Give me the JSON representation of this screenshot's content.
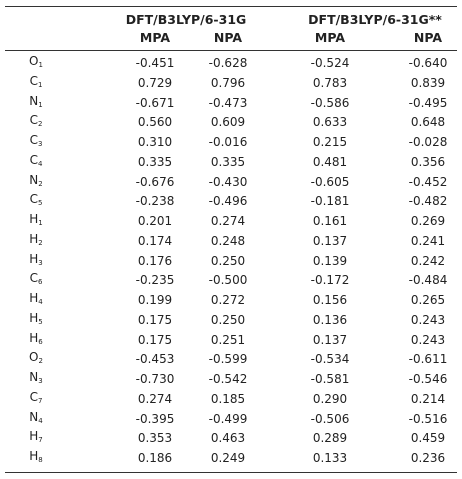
{
  "header": {
    "groups": [
      "DFT/B3LYP/6-31G",
      "DFT/B3LYP/6-31G**"
    ],
    "columns": [
      "MPA",
      "NPA",
      "MPA",
      "NPA"
    ]
  },
  "table": {
    "rows": [
      {
        "atom": "O",
        "sub": "1",
        "values": [
          "-0.451",
          "-0.628",
          "-0.524",
          "-0.640"
        ]
      },
      {
        "atom": "C",
        "sub": "1",
        "values": [
          "0.729",
          "0.796",
          "0.783",
          "0.839"
        ]
      },
      {
        "atom": "N",
        "sub": "1",
        "values": [
          "-0.671",
          "-0.473",
          "-0.586",
          "-0.495"
        ]
      },
      {
        "atom": "C",
        "sub": "2",
        "values": [
          "0.560",
          "0.609",
          "0.633",
          "0.648"
        ]
      },
      {
        "atom": "C",
        "sub": "3",
        "values": [
          "0.310",
          "-0.016",
          "0.215",
          "-0.028"
        ]
      },
      {
        "atom": "C",
        "sub": "4",
        "values": [
          "0.335",
          "0.335",
          "0.481",
          "0.356"
        ]
      },
      {
        "atom": "N",
        "sub": "2",
        "values": [
          "-0.676",
          "-0.430",
          "-0.605",
          "-0.452"
        ]
      },
      {
        "atom": "C",
        "sub": "5",
        "values": [
          "-0.238",
          "-0.496",
          "-0.181",
          "-0.482"
        ]
      },
      {
        "atom": "H",
        "sub": "1",
        "values": [
          "0.201",
          "0.274",
          "0.161",
          "0.269"
        ]
      },
      {
        "atom": "H",
        "sub": "2",
        "values": [
          "0.174",
          "0.248",
          "0.137",
          "0.241"
        ]
      },
      {
        "atom": "H",
        "sub": "3",
        "values": [
          "0.176",
          "0.250",
          "0.139",
          "0.242"
        ]
      },
      {
        "atom": "C",
        "sub": "6",
        "values": [
          "-0.235",
          "-0.500",
          "-0.172",
          "-0.484"
        ]
      },
      {
        "atom": "H",
        "sub": "4",
        "values": [
          "0.199",
          "0.272",
          "0.156",
          "0.265"
        ]
      },
      {
        "atom": "H",
        "sub": "5",
        "values": [
          "0.175",
          "0.250",
          "0.136",
          "0.243"
        ]
      },
      {
        "atom": "H",
        "sub": "6",
        "values": [
          "0.175",
          "0.251",
          "0.137",
          "0.243"
        ]
      },
      {
        "atom": "O",
        "sub": "2",
        "values": [
          "-0.453",
          "-0.599",
          "-0.534",
          "-0.611"
        ]
      },
      {
        "atom": "N",
        "sub": "3",
        "values": [
          "-0.730",
          "-0.542",
          "-0.581",
          "-0.546"
        ]
      },
      {
        "atom": "C",
        "sub": "7",
        "values": [
          "0.274",
          "0.185",
          "0.290",
          "0.214"
        ]
      },
      {
        "atom": "N",
        "sub": "4",
        "values": [
          "-0.395",
          "-0.499",
          "-0.506",
          "-0.516"
        ]
      },
      {
        "atom": "H",
        "sub": "7",
        "values": [
          "0.353",
          "0.463",
          "0.289",
          "0.459"
        ]
      },
      {
        "atom": "H",
        "sub": "8",
        "values": [
          "0.186",
          "0.249",
          "0.133",
          "0.236"
        ]
      }
    ]
  }
}
